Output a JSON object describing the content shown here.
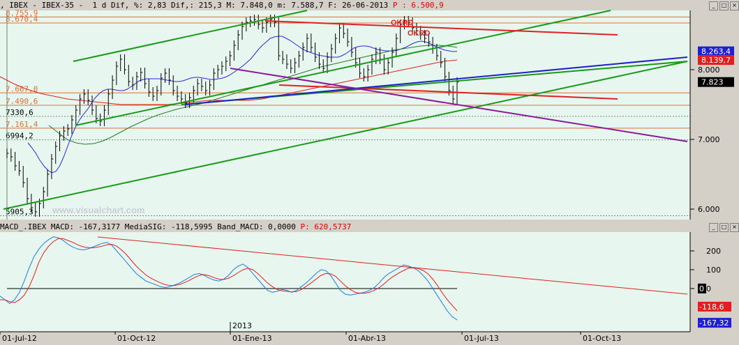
{
  "window": {
    "buttons": [
      "_",
      "□",
      "×"
    ]
  },
  "main_header": {
    "text": ", IBEX - IBEX-35 -  1 d Dif, %: 2,83 Dif,: 215,3 M: 7.848,0 m: 7.588,7 F: 26-06-2013 ",
    "price_text": "P : 6.500,9"
  },
  "macd_header": {
    "text": "MACD_.IBEX MACD: -167,3177 MediaSIG: -118,5995 Band_MACD: 0,0000 ",
    "price_text": "P: 620,5737"
  },
  "watermark": "www.visualchart.com",
  "signals": [
    "OKRD",
    "OKRD"
  ],
  "colors": {
    "bg": "#e7f6ee",
    "price_bars": "#000000",
    "green_channel": "#189a18",
    "red_line": "#e02020",
    "blue_line": "#1c22c8",
    "purple_line": "#8a1a9a",
    "ma_blue": "#2a2ae0",
    "ma_red": "#e02020",
    "ma_green": "#2a7a2a",
    "macd_line": "#1e7ee0",
    "signal_line": "#e02020",
    "level_line": "#e07030"
  },
  "chart_data": [
    {
      "type": "line",
      "title": "IBEX-35 daily (ohlc bars)",
      "xlabel": "",
      "ylabel": "",
      "x_ticks": [
        "01-Jul-12",
        "01-Oct-12",
        "01-Ene-13",
        "01-Abr-13",
        "01-Jul-13",
        "01-Oct-13"
      ],
      "year_marker": "2013",
      "y_ticks": [
        "6.000",
        "7.000",
        "8.000"
      ],
      "ylim": [
        5850,
        8850
      ],
      "price_labels": [
        {
          "value": 8263.4,
          "text": "8.263,4",
          "color": "#2020d0"
        },
        {
          "value": 8139.7,
          "text": "8.139,7",
          "color": "#e02020"
        },
        {
          "value": 7823,
          "text": "7.823",
          "color": "#000000"
        }
      ],
      "levels": [
        {
          "value": 8755.9,
          "text": "8.755,9",
          "color": "#e07030"
        },
        {
          "value": 8670.4,
          "text": "8.670,4",
          "color": "#e07030"
        },
        {
          "value": 7667.0,
          "text": "7.667,0",
          "color": "#e07030"
        },
        {
          "value": 7490.6,
          "text": "7.490,6",
          "color": "#e07030"
        },
        {
          "value": 7330.6,
          "text": "7330,6",
          "color": "#000000"
        },
        {
          "value": 7161.4,
          "text": "7.161,4",
          "color": "#e07030"
        },
        {
          "value": 6994.2,
          "text": "6994,2",
          "color": "#000000"
        },
        {
          "value": 5905.3,
          "text": "5905,3",
          "color": "#000000"
        }
      ],
      "closes": [
        6800,
        6750,
        6620,
        6550,
        6380,
        6150,
        6020,
        5960,
        6080,
        6250,
        6500,
        6720,
        6900,
        7050,
        7120,
        7150,
        7280,
        7420,
        7580,
        7650,
        7560,
        7420,
        7300,
        7260,
        7420,
        7650,
        7850,
        8050,
        8150,
        8000,
        7830,
        7780,
        7900,
        7960,
        7800,
        7680,
        7620,
        7700,
        7880,
        7950,
        7850,
        7700,
        7620,
        7580,
        7520,
        7600,
        7700,
        7800,
        7760,
        7700,
        7780,
        7950,
        8000,
        8050,
        8120,
        8200,
        8350,
        8500,
        8620,
        8680,
        8700,
        8720,
        8650,
        8600,
        8680,
        8720,
        8680,
        8200,
        8150,
        8080,
        8020,
        8100,
        8200,
        8320,
        8450,
        8320,
        8180,
        8080,
        8020,
        8180,
        8300,
        8450,
        8600,
        8520,
        8400,
        8250,
        8100,
        7950,
        7900,
        8000,
        8150,
        8250,
        8150,
        8000,
        8100,
        8250,
        8450,
        8650,
        8700,
        8680,
        8600,
        8560,
        8500,
        8450,
        8400,
        8300,
        8200,
        8100,
        7900,
        7700,
        7580,
        7823
      ],
      "ma_blue": [
        6950,
        6880,
        6800,
        6700,
        6620,
        6560,
        6520,
        6540,
        6620,
        6750,
        6900,
        7050,
        7180,
        7280,
        7360,
        7430,
        7520,
        7600,
        7660,
        7700,
        7720,
        7720,
        7710,
        7700,
        7700,
        7720,
        7760,
        7800,
        7840,
        7860,
        7870,
        7870,
        7870,
        7870,
        7860,
        7850,
        7840,
        7830,
        7830,
        7840,
        7860,
        7880,
        7890,
        7890,
        7880,
        7870,
        7860,
        7860,
        7870,
        7880,
        7900,
        7930,
        7970,
        8010,
        8050,
        8100,
        8150,
        8220,
        8290,
        8350,
        8400,
        8450,
        8470,
        8480,
        8480,
        8450,
        8420,
        8380,
        8340,
        8300,
        8270,
        8250,
        8230,
        8210,
        8200,
        8190,
        8180,
        8180,
        8180,
        8200,
        8230,
        8270,
        8310,
        8330,
        8340,
        8340,
        8330,
        8310,
        8290,
        8280,
        8270,
        8270,
        8270,
        8280,
        8300,
        8320,
        8350,
        8380,
        8400,
        8410,
        8400,
        8380,
        8350,
        8320,
        8300,
        8280,
        8270,
        8260,
        8263
      ],
      "ma_red": [
        7900,
        7850,
        7800,
        7760,
        7720,
        7690,
        7660,
        7640,
        7620,
        7600,
        7580,
        7570,
        7560,
        7550,
        7540,
        7530,
        7520,
        7510,
        7500,
        7500,
        7500,
        7500,
        7500,
        7500,
        7500,
        7500,
        7510,
        7520,
        7530,
        7540,
        7550,
        7560,
        7560,
        7560,
        7560,
        7560,
        7560,
        7560,
        7570,
        7580,
        7600,
        7620,
        7640,
        7660,
        7680,
        7700,
        7720,
        7740,
        7760,
        7780,
        7800,
        7820,
        7840,
        7860,
        7880,
        7900,
        7920,
        7940,
        7960,
        7980,
        8000,
        8020,
        8040,
        8060,
        8080,
        8100,
        8120,
        8130,
        8139
      ],
      "ma_green": [
        7200,
        7100,
        7000,
        6950,
        6930,
        6940,
        6980,
        7040,
        7110,
        7180,
        7240,
        7300,
        7350,
        7390,
        7430,
        7460,
        7490,
        7520,
        7560,
        7600,
        7640,
        7680,
        7720,
        7760,
        7800,
        7840,
        7880,
        7920,
        7960,
        8000,
        8040,
        8070,
        8100,
        8130,
        8160,
        8190,
        8220,
        8250,
        8280,
        8300,
        8320,
        8340,
        8350,
        8350,
        8340,
        8320
      ]
    },
    {
      "type": "line",
      "title": "MACD",
      "xlabel": "",
      "ylabel": "",
      "y_ticks": [
        "200",
        "100",
        "0"
      ],
      "ylim": [
        -230,
        300
      ],
      "zero_line": 0,
      "price_labels": [
        {
          "value": 0,
          "text": "0",
          "color": "#000000"
        },
        {
          "value": -118.6,
          "text": "-118,6",
          "color": "#e02020"
        },
        {
          "value": -167.32,
          "text": "-167,32",
          "color": "#2020d0"
        }
      ],
      "series": [
        {
          "name": "MACD",
          "values": [
            -40,
            -60,
            -80,
            -60,
            -20,
            40,
            110,
            170,
            210,
            240,
            260,
            275,
            270,
            255,
            235,
            220,
            210,
            205,
            210,
            220,
            230,
            240,
            245,
            230,
            200,
            170,
            140,
            110,
            80,
            60,
            40,
            30,
            20,
            10,
            5,
            10,
            20,
            30,
            45,
            60,
            75,
            80,
            70,
            55,
            45,
            40,
            50,
            70,
            100,
            120,
            130,
            110,
            80,
            50,
            20,
            -10,
            -20,
            -15,
            -5,
            -10,
            -20,
            -10,
            10,
            30,
            55,
            80,
            100,
            95,
            70,
            30,
            -10,
            -30,
            -35,
            -30,
            -25,
            -20,
            -10,
            5,
            30,
            60,
            80,
            95,
            110,
            125,
            120,
            110,
            95,
            70,
            40,
            0,
            -40,
            -80,
            -120,
            -150,
            -167.32
          ]
        },
        {
          "name": "MediaSIG",
          "values": [
            -60,
            -60,
            -70,
            -75,
            -60,
            -35,
            10,
            70,
            140,
            190,
            225,
            250,
            265,
            265,
            255,
            245,
            232,
            222,
            218,
            216,
            220,
            225,
            232,
            235,
            225,
            205,
            180,
            150,
            120,
            95,
            72,
            55,
            42,
            30,
            20,
            16,
            16,
            22,
            32,
            44,
            58,
            70,
            74,
            68,
            58,
            50,
            48,
            55,
            68,
            85,
            100,
            108,
            100,
            80,
            55,
            30,
            10,
            -5,
            -12,
            -15,
            -18,
            -16,
            -5,
            12,
            30,
            50,
            70,
            80,
            78,
            65,
            40,
            15,
            -5,
            -20,
            -25,
            -25,
            -20,
            -10,
            5,
            25,
            48,
            66,
            82,
            96,
            108,
            110,
            106,
            96,
            78,
            50,
            15,
            -25,
            -60,
            -90,
            -118.6
          ]
        }
      ]
    }
  ]
}
